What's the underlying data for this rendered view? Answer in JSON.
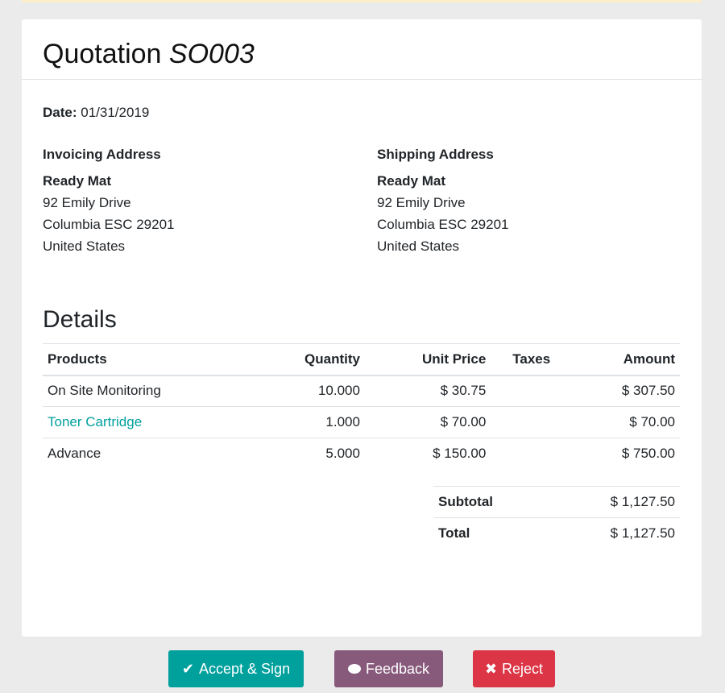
{
  "title": {
    "prefix": "Quotation",
    "number": "SO003"
  },
  "date": {
    "label": "Date:",
    "value": "01/31/2019"
  },
  "invoicing": {
    "heading": "Invoicing Address",
    "name": "Ready Mat",
    "line1": "92 Emily Drive",
    "line2": "Columbia ESC 29201",
    "line3": "United States"
  },
  "shipping": {
    "heading": "Shipping Address",
    "name": "Ready Mat",
    "line1": "92 Emily Drive",
    "line2": "Columbia ESC 29201",
    "line3": "United States"
  },
  "details_heading": "Details",
  "columns": [
    "Products",
    "Quantity",
    "Unit Price",
    "Taxes",
    "Amount"
  ],
  "rows": [
    {
      "product": "On Site Monitoring",
      "quantity": "10.000",
      "unit_price": "$ 30.75",
      "taxes": "",
      "amount": "$ 307.50"
    },
    {
      "product": "Toner Cartridge",
      "quantity": "1.000",
      "unit_price": "$ 70.00",
      "taxes": "",
      "amount": "$ 70.00"
    },
    {
      "product": "Advance",
      "quantity": "5.000",
      "unit_price": "$ 150.00",
      "taxes": "",
      "amount": "$ 750.00"
    }
  ],
  "totals": {
    "subtotal_label": "Subtotal",
    "subtotal": "$ 1,127.50",
    "total_label": "Total",
    "total": "$ 1,127.50"
  },
  "buttons": {
    "accept": "Accept & Sign",
    "feedback": "Feedback",
    "reject": "Reject"
  },
  "colors": {
    "accept": "#00a09d",
    "feedback": "#875a7b",
    "reject": "#dc3545",
    "link": "#00a09d"
  }
}
